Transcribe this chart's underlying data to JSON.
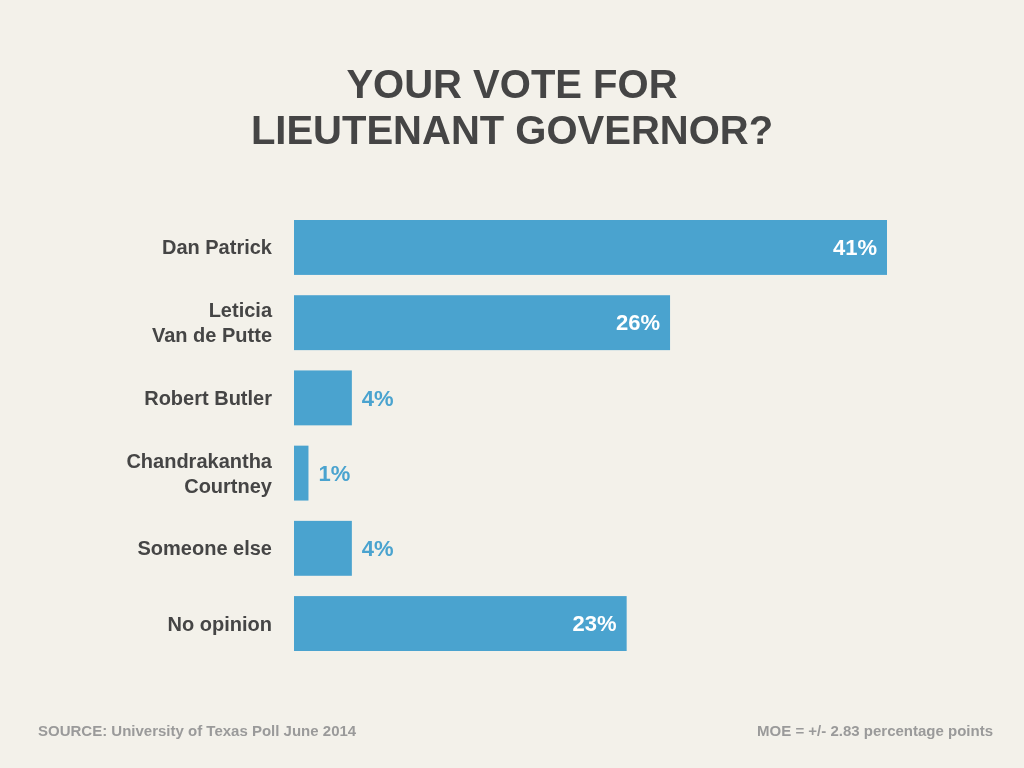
{
  "chart_data": {
    "type": "bar",
    "orientation": "horizontal",
    "title": "YOUR VOTE FOR\nLIEUTENANT GOVERNOR?",
    "categories": [
      "Dan Patrick",
      "Leticia\nVan de Putte",
      "Robert Butler",
      "Chandrakantha\nCourtney",
      "Someone else",
      "No opinion"
    ],
    "values": [
      41,
      26,
      4,
      1,
      4,
      23
    ],
    "value_labels": [
      "41%",
      "26%",
      "4%",
      "1%",
      "4%",
      "23%"
    ],
    "color": "#4aa3cf",
    "annotations": [
      "SOURCE: University of Texas Poll June 2014",
      "MOE = +/- 2.83 percentage points"
    ]
  }
}
